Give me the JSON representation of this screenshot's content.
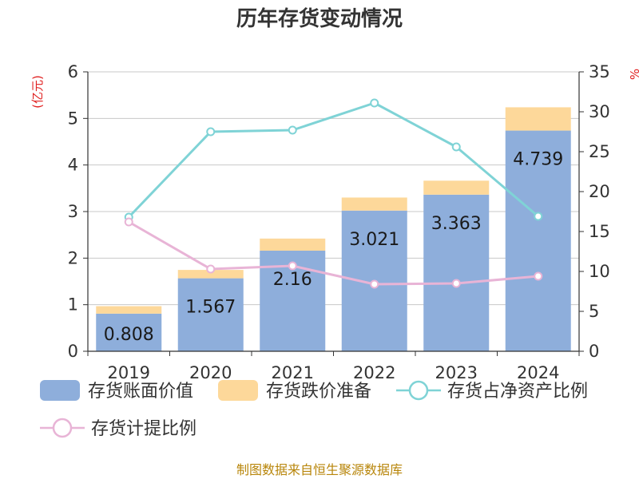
{
  "chart_data": {
    "type": "bar",
    "title": "历年存货变动情况",
    "y_left_unit": "(亿元)",
    "y_right_unit": "%",
    "categories": [
      "2019",
      "2020",
      "2021",
      "2022",
      "2023",
      "2024"
    ],
    "left_ticks": [
      "0",
      "1",
      "2",
      "3",
      "4",
      "5",
      "6"
    ],
    "right_ticks": [
      "0",
      "5",
      "10",
      "15",
      "20",
      "25",
      "30",
      "35"
    ],
    "ylim_left": [
      0,
      6
    ],
    "ylim_right": [
      0,
      35
    ],
    "series": [
      {
        "name": "存货账面价值",
        "kind": "bar",
        "stack": "inv",
        "axis": "left",
        "color": "#8eaedb",
        "values": [
          0.808,
          1.567,
          2.16,
          3.021,
          3.363,
          4.739
        ],
        "labels": [
          "0.808",
          "1.567",
          "2.16",
          "3.021",
          "3.363",
          "4.739"
        ]
      },
      {
        "name": "存货跌价准备",
        "kind": "bar",
        "stack": "inv",
        "axis": "left",
        "color": "#fdd89a",
        "values": [
          0.16,
          0.18,
          0.26,
          0.28,
          0.3,
          0.5
        ]
      },
      {
        "name": "存货占净资产比例",
        "kind": "line",
        "axis": "right",
        "color": "#7fd3d6",
        "values": [
          16.8,
          27.5,
          27.7,
          31.1,
          25.6,
          16.9
        ]
      },
      {
        "name": "存货计提比例",
        "kind": "line",
        "axis": "right",
        "color": "#e8b4d6",
        "values": [
          16.2,
          10.3,
          10.7,
          8.4,
          8.5,
          9.4
        ]
      }
    ],
    "grid": true,
    "legend_position": "bottom"
  },
  "source_note": "制图数据来自恒生聚源数据库"
}
